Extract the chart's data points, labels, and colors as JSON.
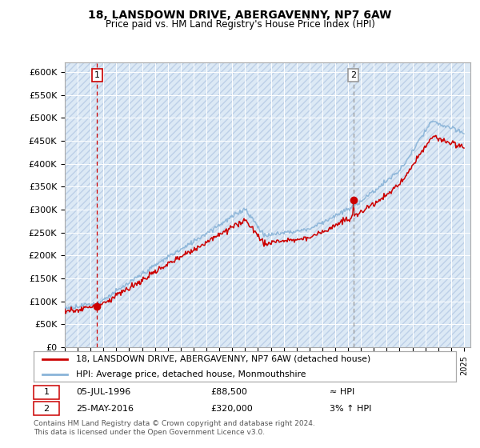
{
  "title": "18, LANSDOWN DRIVE, ABERGAVENNY, NP7 6AW",
  "subtitle": "Price paid vs. HM Land Registry's House Price Index (HPI)",
  "ylim": [
    0,
    620000
  ],
  "yticks": [
    0,
    50000,
    100000,
    150000,
    200000,
    250000,
    300000,
    350000,
    400000,
    450000,
    500000,
    550000,
    600000
  ],
  "ytick_labels": [
    "£0",
    "£50K",
    "£100K",
    "£150K",
    "£200K",
    "£250K",
    "£300K",
    "£350K",
    "£400K",
    "£450K",
    "£500K",
    "£550K",
    "£600K"
  ],
  "xlim_start": 1994,
  "xlim_end": 2025.5,
  "bg_color": "#dce9f5",
  "hatch_color": "#bdd0e8",
  "grid_color": "#ffffff",
  "sale1_date": 1996.51,
  "sale1_price": 88500,
  "sale1_label": "1",
  "sale2_date": 2016.4,
  "sale2_price": 320000,
  "sale2_label": "2",
  "line1_label": "18, LANSDOWN DRIVE, ABERGAVENNY, NP7 6AW (detached house)",
  "line2_label": "HPI: Average price, detached house, Monmouthshire",
  "sale_marker_color": "#cc0000",
  "hpi_line_color": "#8ab4d8",
  "price_line_color": "#cc0000",
  "vline1_color": "#cc0000",
  "vline2_color": "#999999",
  "vline_style": "--",
  "footer": "Contains HM Land Registry data © Crown copyright and database right 2024.\nThis data is licensed under the Open Government Licence v3.0."
}
